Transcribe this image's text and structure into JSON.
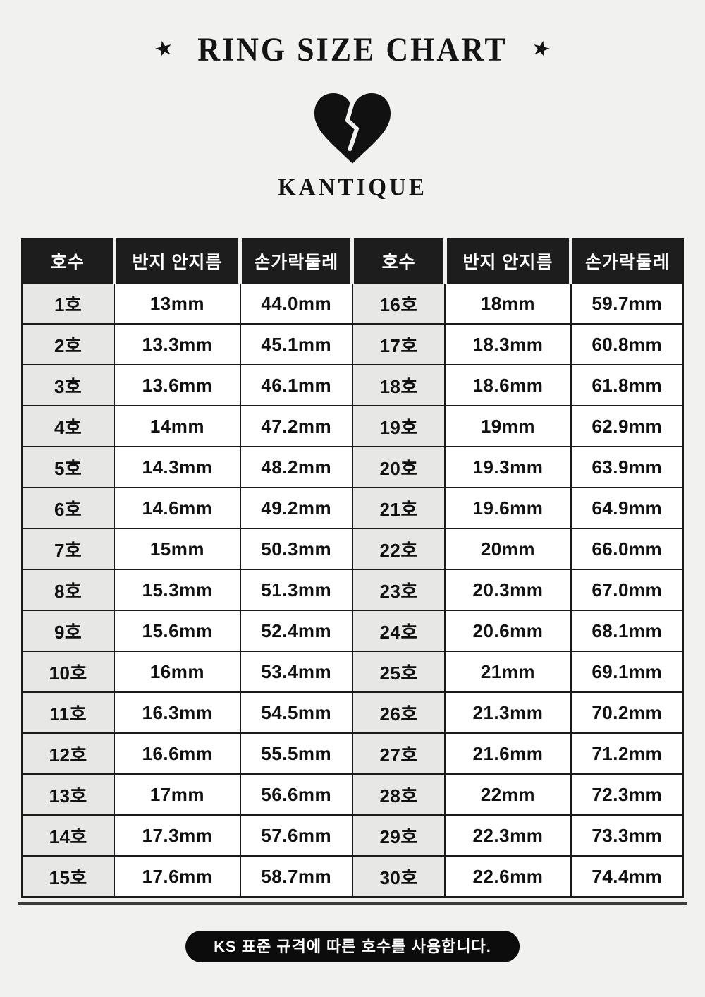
{
  "header": {
    "title": "RING SIZE CHART",
    "star": "★",
    "brand": "KANTIQUE"
  },
  "table": {
    "columns": [
      "호수",
      "반지 안지름",
      "손가락둘레",
      "호수",
      "반지 안지름",
      "손가락둘레"
    ],
    "rows": [
      [
        "1호",
        "13mm",
        "44.0mm",
        "16호",
        "18mm",
        "59.7mm"
      ],
      [
        "2호",
        "13.3mm",
        "45.1mm",
        "17호",
        "18.3mm",
        "60.8mm"
      ],
      [
        "3호",
        "13.6mm",
        "46.1mm",
        "18호",
        "18.6mm",
        "61.8mm"
      ],
      [
        "4호",
        "14mm",
        "47.2mm",
        "19호",
        "19mm",
        "62.9mm"
      ],
      [
        "5호",
        "14.3mm",
        "48.2mm",
        "20호",
        "19.3mm",
        "63.9mm"
      ],
      [
        "6호",
        "14.6mm",
        "49.2mm",
        "21호",
        "19.6mm",
        "64.9mm"
      ],
      [
        "7호",
        "15mm",
        "50.3mm",
        "22호",
        "20mm",
        "66.0mm"
      ],
      [
        "8호",
        "15.3mm",
        "51.3mm",
        "23호",
        "20.3mm",
        "67.0mm"
      ],
      [
        "9호",
        "15.6mm",
        "52.4mm",
        "24호",
        "20.6mm",
        "68.1mm"
      ],
      [
        "10호",
        "16mm",
        "53.4mm",
        "25호",
        "21mm",
        "69.1mm"
      ],
      [
        "11호",
        "16.3mm",
        "54.5mm",
        "26호",
        "21.3mm",
        "70.2mm"
      ],
      [
        "12호",
        "16.6mm",
        "55.5mm",
        "27호",
        "21.6mm",
        "71.2mm"
      ],
      [
        "13호",
        "17mm",
        "56.6mm",
        "28호",
        "22mm",
        "72.3mm"
      ],
      [
        "14호",
        "17.3mm",
        "57.6mm",
        "29호",
        "22.3mm",
        "73.3mm"
      ],
      [
        "15호",
        "17.6mm",
        "58.7mm",
        "30호",
        "22.6mm",
        "74.4mm"
      ]
    ]
  },
  "footer": {
    "note": "KS 표준 규격에 따른 호수를 사용합니다."
  },
  "colors": {
    "page_background": "#f1f1ef",
    "header_row_background": "#1d1d1d",
    "size_column_background": "#e7e7e6",
    "cell_background": "#ffffff",
    "border": "#1a1a1a",
    "badge_background": "#0c0c0c",
    "text": "#111111",
    "header_text": "#ffffff"
  },
  "chart_data": {
    "type": "table",
    "title": "RING SIZE CHART",
    "brand": "KANTIQUE",
    "columns": [
      "호수",
      "반지 안지름",
      "손가락둘레"
    ],
    "rows": [
      [
        "1호",
        "13mm",
        "44.0mm"
      ],
      [
        "2호",
        "13.3mm",
        "45.1mm"
      ],
      [
        "3호",
        "13.6mm",
        "46.1mm"
      ],
      [
        "4호",
        "14mm",
        "47.2mm"
      ],
      [
        "5호",
        "14.3mm",
        "48.2mm"
      ],
      [
        "6호",
        "14.6mm",
        "49.2mm"
      ],
      [
        "7호",
        "15mm",
        "50.3mm"
      ],
      [
        "8호",
        "15.3mm",
        "51.3mm"
      ],
      [
        "9호",
        "15.6mm",
        "52.4mm"
      ],
      [
        "10호",
        "16mm",
        "53.4mm"
      ],
      [
        "11호",
        "16.3mm",
        "54.5mm"
      ],
      [
        "12호",
        "16.6mm",
        "55.5mm"
      ],
      [
        "13호",
        "17mm",
        "56.6mm"
      ],
      [
        "14호",
        "17.3mm",
        "57.6mm"
      ],
      [
        "15호",
        "17.6mm",
        "58.7mm"
      ],
      [
        "16호",
        "18mm",
        "59.7mm"
      ],
      [
        "17호",
        "18.3mm",
        "60.8mm"
      ],
      [
        "18호",
        "18.6mm",
        "61.8mm"
      ],
      [
        "19호",
        "19mm",
        "62.9mm"
      ],
      [
        "20호",
        "19.3mm",
        "63.9mm"
      ],
      [
        "21호",
        "19.6mm",
        "64.9mm"
      ],
      [
        "22호",
        "20mm",
        "66.0mm"
      ],
      [
        "23호",
        "20.3mm",
        "67.0mm"
      ],
      [
        "24호",
        "20.6mm",
        "68.1mm"
      ],
      [
        "25호",
        "21mm",
        "69.1mm"
      ],
      [
        "26호",
        "21.3mm",
        "70.2mm"
      ],
      [
        "27호",
        "21.6mm",
        "71.2mm"
      ],
      [
        "28호",
        "22mm",
        "72.3mm"
      ],
      [
        "29호",
        "22.3mm",
        "73.3mm"
      ],
      [
        "30호",
        "22.6mm",
        "74.4mm"
      ]
    ],
    "footnote": "KS 표준 규격에 따른 호수를 사용합니다."
  }
}
